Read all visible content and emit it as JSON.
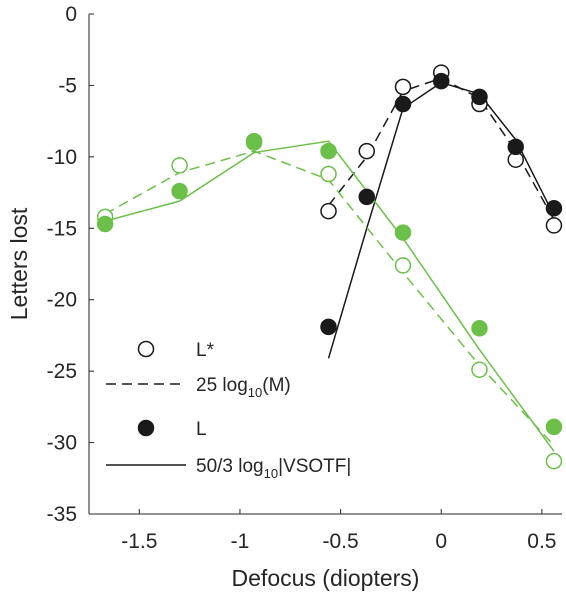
{
  "chart_data": {
    "type": "scatter",
    "xlabel": "Defocus (diopters)",
    "ylabel": "Letters lost",
    "xlim": [
      -1.75,
      0.6
    ],
    "ylim": [
      -35,
      0
    ],
    "xticks": [
      -1.5,
      -1,
      -0.5,
      0,
      0.5
    ],
    "xtick_labels": [
      "-1.5",
      "-1",
      "-0.5",
      "0",
      "0.5"
    ],
    "yticks": [
      0,
      -5,
      -10,
      -15,
      -20,
      -25,
      -30,
      -35
    ],
    "ytick_labels": [
      "0",
      "-5",
      "-10",
      "-15",
      "-20",
      "-25",
      "-30",
      "-35"
    ],
    "grid": false,
    "legend": [
      {
        "key": "lstar",
        "prefix": "L*",
        "sub": "",
        "suffix": ""
      },
      {
        "key": "logm",
        "prefix": "25 log",
        "sub": "10",
        "suffix": "(M)"
      },
      {
        "key": "l",
        "prefix": "L",
        "sub": "",
        "suffix": ""
      },
      {
        "key": "vsotf",
        "prefix": "50/3 log",
        "sub": "10",
        "suffix": "|VSOTF|"
      }
    ],
    "colors": {
      "black": "#1a1a1a",
      "green": "#6cc04a"
    },
    "series": [
      {
        "group": "black",
        "kind": "open-markers",
        "points": [
          [
            -0.56,
            -13.8
          ],
          [
            -0.37,
            -9.6
          ],
          [
            -0.19,
            -5.1
          ],
          [
            0.0,
            -4.1
          ],
          [
            0.19,
            -6.3
          ],
          [
            0.37,
            -10.2
          ],
          [
            0.56,
            -14.8
          ]
        ]
      },
      {
        "group": "black",
        "kind": "dashed-line",
        "points": [
          [
            -0.56,
            -13.4
          ],
          [
            -0.37,
            -10.0
          ],
          [
            -0.19,
            -5.4
          ],
          [
            0.0,
            -4.5
          ],
          [
            0.19,
            -5.9
          ],
          [
            0.37,
            -9.6
          ],
          [
            0.56,
            -14.4
          ]
        ]
      },
      {
        "group": "black",
        "kind": "filled-markers",
        "points": [
          [
            -0.56,
            -21.9
          ],
          [
            -0.37,
            -12.8
          ],
          [
            -0.19,
            -6.3
          ],
          [
            0.0,
            -4.7
          ],
          [
            0.19,
            -5.8
          ],
          [
            0.37,
            -9.3
          ],
          [
            0.56,
            -13.6
          ]
        ]
      },
      {
        "group": "black",
        "kind": "solid-line",
        "points": [
          [
            -0.56,
            -24.1
          ],
          [
            -0.37,
            -15.0
          ],
          [
            -0.19,
            -6.6
          ],
          [
            0.0,
            -4.8
          ],
          [
            0.19,
            -5.6
          ],
          [
            0.37,
            -8.8
          ],
          [
            0.56,
            -14.1
          ]
        ]
      },
      {
        "group": "green",
        "kind": "open-markers",
        "points": [
          [
            -1.67,
            -14.2
          ],
          [
            -1.3,
            -10.6
          ],
          [
            -0.93,
            -9.0
          ],
          [
            -0.56,
            -11.2
          ],
          [
            -0.19,
            -17.6
          ],
          [
            0.19,
            -24.9
          ],
          [
            0.56,
            -31.3
          ]
        ]
      },
      {
        "group": "green",
        "kind": "dashed-line",
        "points": [
          [
            -1.67,
            -14.0
          ],
          [
            -1.3,
            -11.1
          ],
          [
            -0.93,
            -9.6
          ],
          [
            -0.56,
            -11.6
          ],
          [
            -0.19,
            -18.1
          ],
          [
            0.19,
            -24.6
          ],
          [
            0.56,
            -30.2
          ]
        ]
      },
      {
        "group": "green",
        "kind": "filled-markers",
        "points": [
          [
            -1.67,
            -14.7
          ],
          [
            -1.3,
            -12.4
          ],
          [
            -0.93,
            -8.9
          ],
          [
            -0.56,
            -9.6
          ],
          [
            -0.19,
            -15.3
          ],
          [
            0.19,
            -22.0
          ],
          [
            0.56,
            -28.9
          ]
        ]
      },
      {
        "group": "green",
        "kind": "solid-line",
        "points": [
          [
            -1.67,
            -14.5
          ],
          [
            -1.3,
            -13.1
          ],
          [
            -0.93,
            -9.7
          ],
          [
            -0.56,
            -8.9
          ],
          [
            -0.19,
            -15.7
          ],
          [
            0.19,
            -23.5
          ],
          [
            0.56,
            -30.6
          ]
        ]
      }
    ]
  }
}
